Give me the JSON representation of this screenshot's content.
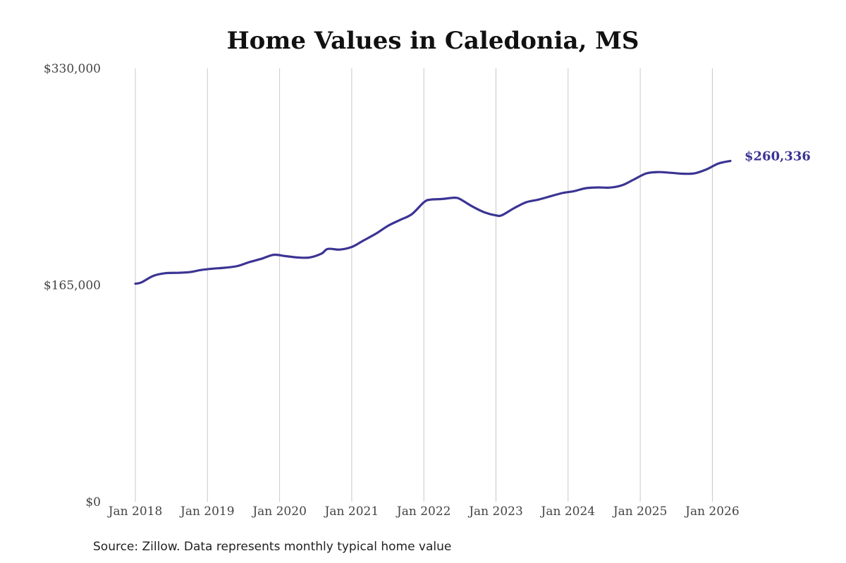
{
  "chart_data": {
    "type": "line",
    "title": "Home Values in Caledonia, MS",
    "source": "Source: Zillow. Data represents monthly typical home value",
    "xlabel": "",
    "ylabel": "",
    "ylim": [
      0,
      330000
    ],
    "y_ticks": [
      {
        "value": 0,
        "label": "$0"
      },
      {
        "value": 165000,
        "label": "$165,000"
      },
      {
        "value": 330000,
        "label": "$330,000"
      }
    ],
    "x_range": [
      "2018-01",
      "2026-04"
    ],
    "x_ticks": [
      {
        "date": "2018-01",
        "label": "Jan 2018"
      },
      {
        "date": "2019-01",
        "label": "Jan 2019"
      },
      {
        "date": "2020-01",
        "label": "Jan 2020"
      },
      {
        "date": "2021-01",
        "label": "Jan 2021"
      },
      {
        "date": "2022-01",
        "label": "Jan 2022"
      },
      {
        "date": "2023-01",
        "label": "Jan 2023"
      },
      {
        "date": "2024-01",
        "label": "Jan 2024"
      },
      {
        "date": "2025-01",
        "label": "Jan 2025"
      },
      {
        "date": "2026-01",
        "label": "Jan 2026"
      }
    ],
    "grid": "vertical",
    "line_color": "#3b3493",
    "end_label": "$260,336",
    "series": [
      {
        "x": [
          "2018-01",
          "2018-02",
          "2018-04",
          "2018-06",
          "2018-08",
          "2018-10",
          "2018-12",
          "2019-02",
          "2019-04",
          "2019-06",
          "2019-08",
          "2019-10",
          "2019-12",
          "2020-02",
          "2020-04",
          "2020-06",
          "2020-08",
          "2020-09",
          "2020-11",
          "2021-01",
          "2021-03",
          "2021-05",
          "2021-07",
          "2021-09",
          "2021-11",
          "2022-01",
          "2022-02",
          "2022-04",
          "2022-06",
          "2022-07",
          "2022-09",
          "2022-11",
          "2023-01",
          "2023-02",
          "2023-04",
          "2023-06",
          "2023-08",
          "2023-10",
          "2023-12",
          "2024-02",
          "2024-04",
          "2024-06",
          "2024-08",
          "2024-10",
          "2024-12",
          "2025-02",
          "2025-04",
          "2025-06",
          "2025-08",
          "2025-10",
          "2025-12",
          "2026-02",
          "2026-04"
        ],
        "values": [
          166000,
          167000,
          172000,
          174000,
          174300,
          174800,
          176500,
          177500,
          178200,
          179500,
          182500,
          185000,
          188000,
          187000,
          186000,
          186000,
          189000,
          192500,
          192000,
          194000,
          199000,
          204000,
          210000,
          214500,
          219000,
          228000,
          230000,
          230500,
          231500,
          230500,
          225000,
          220500,
          218000,
          218200,
          223500,
          228000,
          230000,
          232500,
          235000,
          236500,
          238800,
          239300,
          239200,
          241000,
          245500,
          250000,
          251000,
          250500,
          249800,
          250000,
          253000,
          257500,
          259500
        ]
      }
    ]
  }
}
